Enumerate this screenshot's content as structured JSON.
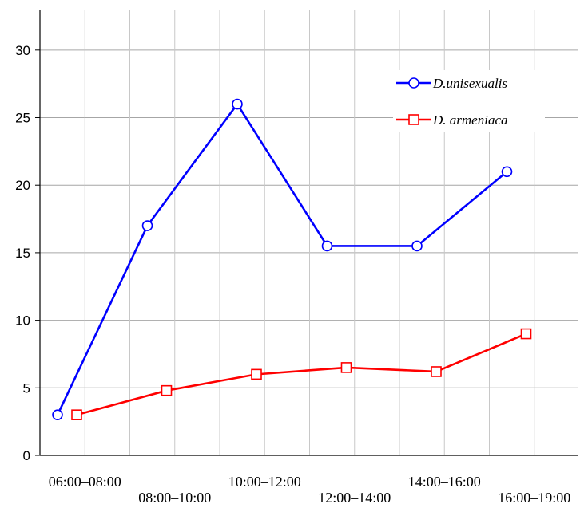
{
  "chart_data": {
    "type": "line",
    "categories": [
      "06:00–08:00",
      "08:00–10:00",
      "10:00–12:00",
      "12:00–14:00",
      "14:00–16:00",
      "16:00–19:00"
    ],
    "series": [
      {
        "name": "D.unisexualis",
        "values": [
          3,
          17,
          26,
          15.5,
          15.5,
          21
        ],
        "color": "#0000ff",
        "marker": "circle"
      },
      {
        "name": "D. armeniaca",
        "values": [
          3,
          4.8,
          6,
          6.5,
          6.2,
          9
        ],
        "color": "#ff0000",
        "marker": "square"
      }
    ],
    "yticks": [
      0,
      5,
      10,
      15,
      20,
      25,
      30
    ],
    "ylim": [
      0,
      33
    ],
    "grid": true,
    "legend_position": "top-right"
  }
}
